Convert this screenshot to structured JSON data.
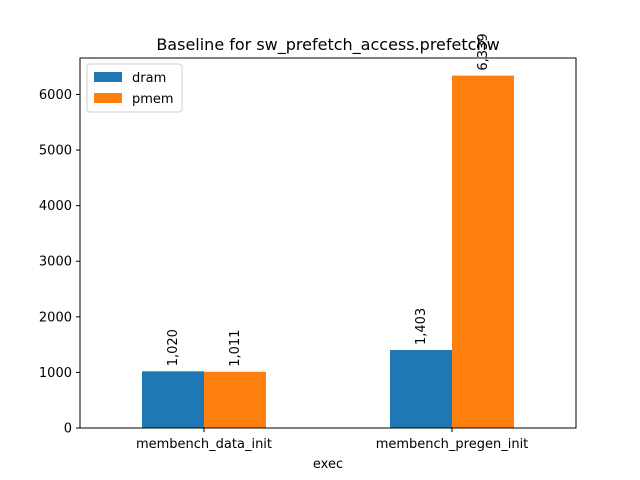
{
  "chart_data": {
    "type": "bar",
    "title": "Baseline for sw_prefetch_access.prefetchw",
    "xlabel": "exec",
    "ylabel": "",
    "categories": [
      "membench_data_init",
      "membench_pregen_init"
    ],
    "series": [
      {
        "name": "dram",
        "color": "#1f77b4",
        "values": [
          1020,
          1403
        ],
        "labels": [
          "1,020",
          "1,403"
        ]
      },
      {
        "name": "pmem",
        "color": "#ff7f0e",
        "values": [
          1011,
          6339
        ],
        "labels": [
          "1,011",
          "6,339"
        ]
      }
    ],
    "ylim": [
      0,
      6656
    ],
    "yticks": [
      0,
      1000,
      2000,
      3000,
      4000,
      5000,
      6000
    ],
    "ytick_labels": [
      "0",
      "1000",
      "2000",
      "3000",
      "4000",
      "5000",
      "6000"
    ],
    "legend_position": "top-left",
    "grid": false
  }
}
